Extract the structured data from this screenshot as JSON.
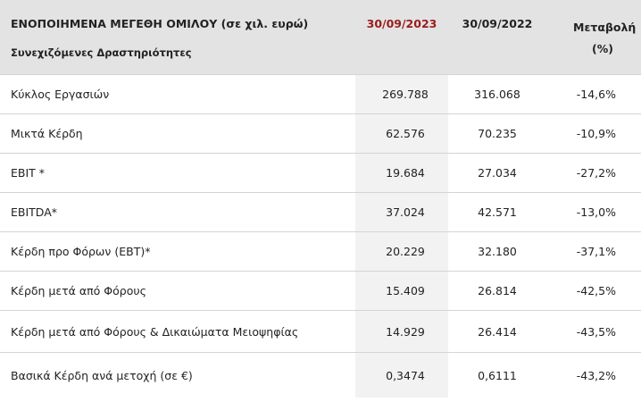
{
  "table": {
    "header": {
      "title": "ΕΝΟΠΟΙΗΜΕΝΑ ΜΕΓΕΘΗ ΟΜΙΛΟΥ (σε χιλ. ευρώ)",
      "subtitle": "Συνεχιζόμενες Δραστηριότητες",
      "columns": [
        "30/09/2023",
        "30/09/2022",
        "Μεταβολή (%)"
      ]
    },
    "rows": [
      [
        "Κύκλος Εργασιών",
        "269.788",
        "316.068",
        "-14,6%"
      ],
      [
        "Μικτά Κέρδη",
        "62.576",
        "70.235",
        "-10,9%"
      ],
      [
        "EBIT *",
        "19.684",
        "27.034",
        "-27,2%"
      ],
      [
        "EBITDA*",
        "37.024",
        "42.571",
        "-13,0%"
      ],
      [
        "Κέρδη προ Φόρων (EBT)*",
        "20.229",
        "32.180",
        "-37,1%"
      ],
      [
        "Κέρδη μετά από Φόρους",
        "15.409",
        "26.814",
        "-42,5%"
      ],
      [
        "Κέρδη μετά από Φόρους & Δικαιώματα Μειοψηφίας",
        "14.929",
        "26.414",
        "-43,5%"
      ],
      [
        "Βασικά Κέρδη ανά μετοχή (σε €)",
        "0,3474",
        "0,6111",
        "-43,2%"
      ]
    ]
  }
}
